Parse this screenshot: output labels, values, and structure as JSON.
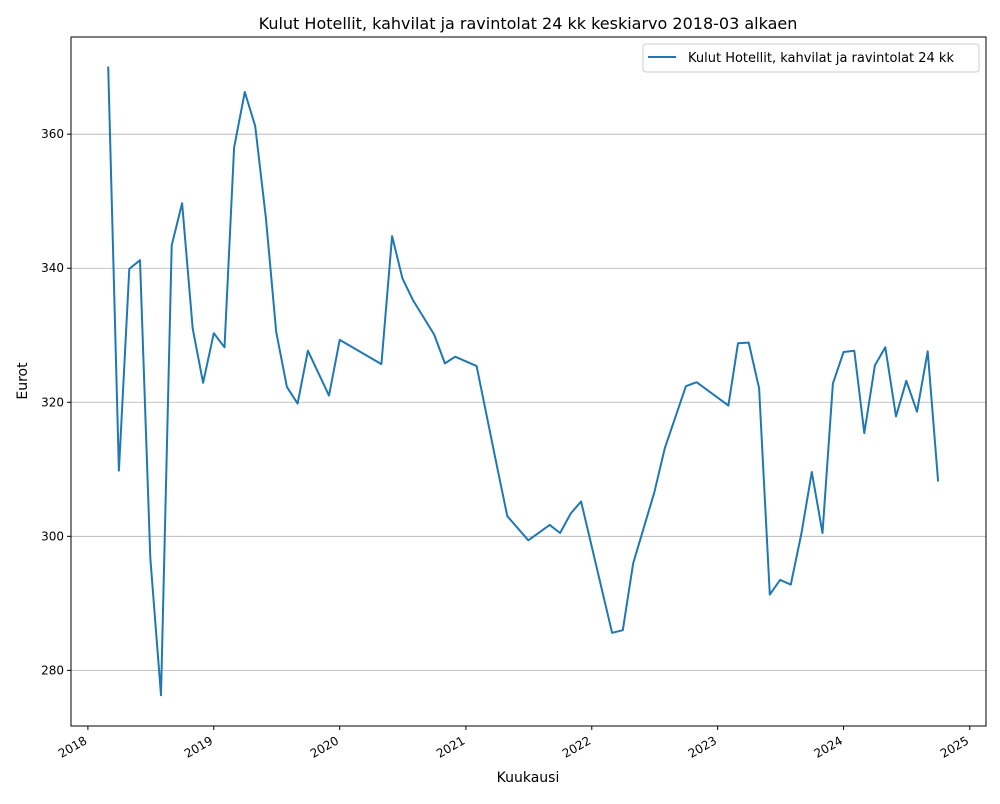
{
  "chart_data": {
    "type": "line",
    "title": "Kulut Hotellit, kahvilat ja ravintolat 24 kk keskiarvo 2018-03 alkaen",
    "xlabel": "Kuukausi",
    "ylabel": "Eurot",
    "x_axis_type": "date",
    "xlim": [
      "2017-11-13",
      "2025-02-17"
    ],
    "ylim": [
      271.7,
      374.5
    ],
    "x_ticks": [
      "2018",
      "2019",
      "2020",
      "2021",
      "2022",
      "2023",
      "2024",
      "2025"
    ],
    "y_ticks": [
      280,
      300,
      320,
      340,
      360
    ],
    "grid": "horizontal",
    "legend_position": "top-right",
    "line_color": "#1f77b4",
    "series": [
      {
        "name": "Kulut Hotellit, kahvilat ja ravintolat 24 kk",
        "points": [
          [
            "2018-03-01",
            370.1
          ],
          [
            "2018-04-01",
            309.8
          ],
          [
            "2018-05-01",
            339.9
          ],
          [
            "2018-06-01",
            341.2
          ],
          [
            "2018-07-01",
            296.8
          ],
          [
            "2018-08-01",
            276.3
          ],
          [
            "2018-09-01",
            343.4
          ],
          [
            "2018-10-01",
            349.7
          ],
          [
            "2018-11-01",
            331.0
          ],
          [
            "2018-12-01",
            322.9
          ],
          [
            "2019-01-01",
            330.3
          ],
          [
            "2019-02-01",
            328.2
          ],
          [
            "2019-03-01",
            358.0
          ],
          [
            "2019-04-01",
            366.3
          ],
          [
            "2019-05-01",
            361.2
          ],
          [
            "2019-06-01",
            347.5
          ],
          [
            "2019-07-01",
            330.5
          ],
          [
            "2019-08-01",
            322.3
          ],
          [
            "2019-09-01",
            319.8
          ],
          [
            "2019-10-01",
            327.7
          ],
          [
            "2019-12-01",
            321.0
          ],
          [
            "2020-01-01",
            329.3
          ],
          [
            "2020-05-01",
            325.7
          ],
          [
            "2020-06-01",
            344.8
          ],
          [
            "2020-07-01",
            338.5
          ],
          [
            "2020-08-01",
            335.2
          ],
          [
            "2020-10-01",
            330.1
          ],
          [
            "2020-11-01",
            325.8
          ],
          [
            "2020-12-01",
            326.8
          ],
          [
            "2021-02-01",
            325.4
          ],
          [
            "2021-04-01",
            310.5
          ],
          [
            "2021-05-01",
            303.0
          ],
          [
            "2021-07-01",
            299.4
          ],
          [
            "2021-09-01",
            301.7
          ],
          [
            "2021-10-01",
            300.5
          ],
          [
            "2021-11-01",
            303.4
          ],
          [
            "2021-12-01",
            305.2
          ],
          [
            "2022-03-01",
            285.6
          ],
          [
            "2022-04-01",
            286.0
          ],
          [
            "2022-05-01",
            296.0
          ],
          [
            "2022-07-01",
            306.5
          ],
          [
            "2022-08-01",
            313.2
          ],
          [
            "2022-10-01",
            322.4
          ],
          [
            "2022-11-01",
            323.0
          ],
          [
            "2023-02-01",
            319.5
          ],
          [
            "2023-03-01",
            328.8
          ],
          [
            "2023-04-01",
            328.9
          ],
          [
            "2023-05-01",
            322.1
          ],
          [
            "2023-06-01",
            291.3
          ],
          [
            "2023-07-01",
            293.5
          ],
          [
            "2023-08-01",
            292.8
          ],
          [
            "2023-09-01",
            300.5
          ],
          [
            "2023-10-01",
            309.6
          ],
          [
            "2023-11-01",
            300.5
          ],
          [
            "2023-12-01",
            322.8
          ],
          [
            "2024-01-01",
            327.5
          ],
          [
            "2024-02-01",
            327.7
          ],
          [
            "2024-03-01",
            315.4
          ],
          [
            "2024-04-01",
            325.5
          ],
          [
            "2024-05-01",
            328.2
          ],
          [
            "2024-06-01",
            317.9
          ],
          [
            "2024-07-01",
            323.2
          ],
          [
            "2024-08-01",
            318.6
          ],
          [
            "2024-09-01",
            327.6
          ],
          [
            "2024-10-01",
            308.2
          ]
        ]
      }
    ]
  }
}
